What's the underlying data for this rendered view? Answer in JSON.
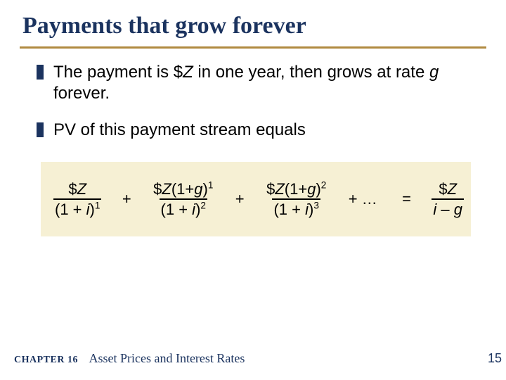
{
  "colors": {
    "title": "#1b335f",
    "underline": "#b08a40",
    "bullet_marker": "#1b335f",
    "body_text": "#000000",
    "formula_bg": "#f6f0d4",
    "footer_text": "#1b335f",
    "background": "#ffffff"
  },
  "title": "Payments that grow forever",
  "bullets": [
    {
      "pre": "The payment is $",
      "var1": "Z",
      "mid": " in one year, then grows at rate ",
      "var2": "g",
      "post": " forever."
    },
    {
      "text": "PV of this payment stream equals"
    }
  ],
  "formula": {
    "terms": [
      {
        "num_pre": "$",
        "num_var": "Z",
        "num_post": "",
        "den_pre": "(1 + ",
        "den_var": "i",
        "den_post": ")",
        "exp": "1"
      },
      {
        "num_pre": "$",
        "num_var": "Z",
        "num_mid": "(1+",
        "num_var2": "g",
        "num_post": ")",
        "num_exp": "1",
        "den_pre": "(1 + ",
        "den_var": "i",
        "den_post": ")",
        "exp": "2"
      },
      {
        "num_pre": "$",
        "num_var": "Z",
        "num_mid": "(1+",
        "num_var2": "g",
        "num_post": ")",
        "num_exp": "2",
        "den_pre": "(1 + ",
        "den_var": "i",
        "den_post": ")",
        "exp": "3"
      }
    ],
    "ellipsis": "+ …",
    "equals": "=",
    "rhs": {
      "num_pre": "$",
      "num_var": "Z",
      "den_var1": "i",
      "den_mid": " – ",
      "den_var2": "g"
    },
    "plus": "+"
  },
  "footer": {
    "chapter_label": "CHAPTER 16",
    "chapter_title": "Asset Prices and Interest Rates"
  },
  "page_number": "15"
}
